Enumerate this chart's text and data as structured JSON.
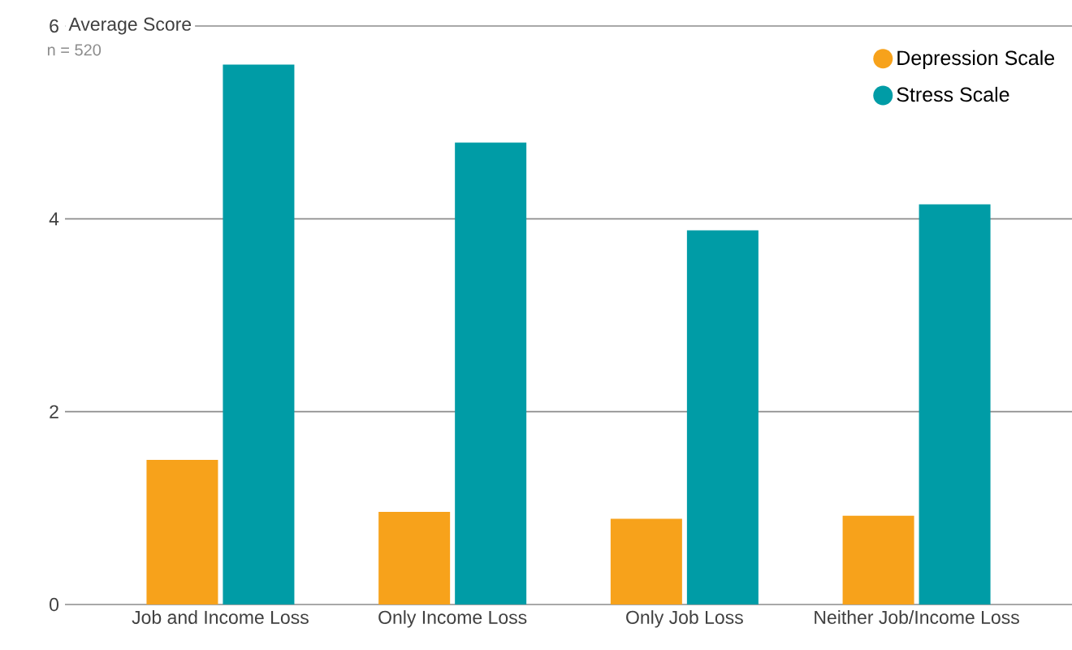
{
  "chart_data": {
    "type": "bar",
    "ylabel": "Average Score",
    "annotations": [
      "n = 520"
    ],
    "categories": [
      "Job and Income Loss",
      "Only Income Loss",
      "Only Job Loss",
      "Neither Job/Income Loss"
    ],
    "series": [
      {
        "name": "Depression Scale",
        "color": "#f7a21b",
        "values": [
          1.5,
          0.96,
          0.89,
          0.92
        ]
      },
      {
        "name": "Stress Scale",
        "color": "#009ca6",
        "values": [
          5.6,
          4.79,
          3.88,
          4.15
        ]
      }
    ],
    "ylim": [
      0,
      6
    ],
    "yticks": [
      0,
      2,
      4,
      6
    ],
    "grid": "y",
    "legend": "top right"
  }
}
